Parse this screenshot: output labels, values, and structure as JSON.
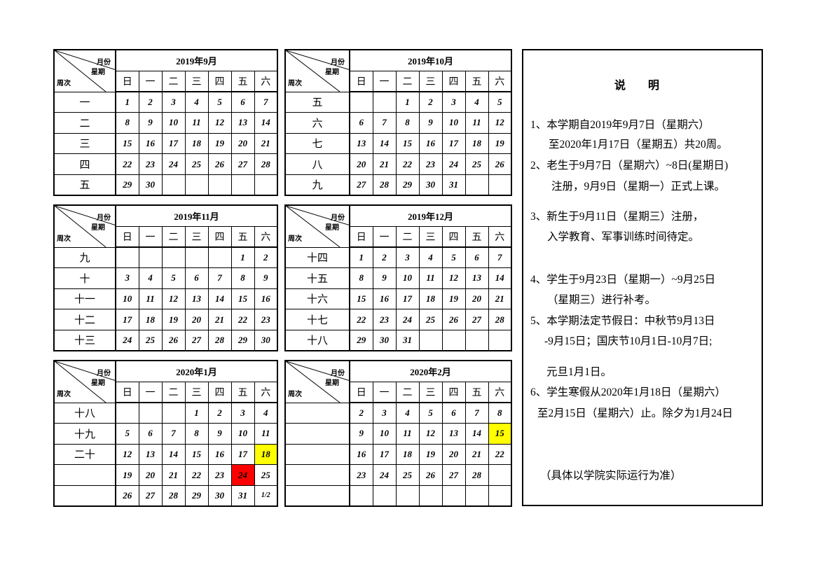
{
  "corner": {
    "month": "月份",
    "weekday": "星期",
    "week": "周次"
  },
  "weekdays": [
    "日",
    "一",
    "二",
    "三",
    "四",
    "五",
    "六"
  ],
  "colors": {
    "winter_start": "#ffff00",
    "new_year_eve": "#ff0000",
    "winter_end": "#ffff00"
  },
  "months": [
    {
      "title": "2019年9月",
      "weeks": [
        {
          "week": "一",
          "days": [
            "1",
            "2",
            "3",
            "4",
            "5",
            "6",
            "7"
          ]
        },
        {
          "week": "二",
          "days": [
            "8",
            "9",
            "10",
            "11",
            "12",
            "13",
            "14"
          ]
        },
        {
          "week": "三",
          "days": [
            "15",
            "16",
            "17",
            "18",
            "19",
            "20",
            "21"
          ]
        },
        {
          "week": "四",
          "days": [
            "22",
            "23",
            "24",
            "25",
            "26",
            "27",
            "28"
          ]
        },
        {
          "week": "五",
          "days": [
            "29",
            "30",
            "",
            "",
            "",
            "",
            ""
          ]
        }
      ]
    },
    {
      "title": "2019年10月",
      "weeks": [
        {
          "week": "五",
          "days": [
            "",
            "",
            "1",
            "2",
            "3",
            "4",
            "5"
          ]
        },
        {
          "week": "六",
          "days": [
            "6",
            "7",
            "8",
            "9",
            "10",
            "11",
            "12"
          ]
        },
        {
          "week": "七",
          "days": [
            "13",
            "14",
            "15",
            "16",
            "17",
            "18",
            "19"
          ]
        },
        {
          "week": "八",
          "days": [
            "20",
            "21",
            "22",
            "23",
            "24",
            "25",
            "26"
          ]
        },
        {
          "week": "九",
          "days": [
            "27",
            "28",
            "29",
            "30",
            "31",
            "",
            ""
          ]
        }
      ]
    },
    {
      "title": "2019年11月",
      "weeks": [
        {
          "week": "九",
          "days": [
            "",
            "",
            "",
            "",
            "",
            "1",
            "2"
          ]
        },
        {
          "week": "十",
          "days": [
            "3",
            "4",
            "5",
            "6",
            "7",
            "8",
            "9"
          ]
        },
        {
          "week": "十一",
          "days": [
            "10",
            "11",
            "12",
            "13",
            "14",
            "15",
            "16"
          ]
        },
        {
          "week": "十二",
          "days": [
            "17",
            "18",
            "19",
            "20",
            "21",
            "22",
            "23"
          ]
        },
        {
          "week": "十三",
          "days": [
            "24",
            "25",
            "26",
            "27",
            "28",
            "29",
            "30"
          ]
        }
      ]
    },
    {
      "title": "2019年12月",
      "weeks": [
        {
          "week": "十四",
          "days": [
            "1",
            "2",
            "3",
            "4",
            "5",
            "6",
            "7"
          ]
        },
        {
          "week": "十五",
          "days": [
            "8",
            "9",
            "10",
            "11",
            "12",
            "13",
            "14"
          ]
        },
        {
          "week": "十六",
          "days": [
            "15",
            "16",
            "17",
            "18",
            "19",
            "20",
            "21"
          ]
        },
        {
          "week": "十七",
          "days": [
            "22",
            "23",
            "24",
            "25",
            "26",
            "27",
            "28"
          ]
        },
        {
          "week": "十八",
          "days": [
            "29",
            "30",
            "31",
            "",
            "",
            "",
            ""
          ]
        }
      ]
    },
    {
      "title": "2020年1月",
      "weeks": [
        {
          "week": "十八",
          "days": [
            "",
            "",
            "",
            "1",
            "2",
            "3",
            "4"
          ]
        },
        {
          "week": "十九",
          "days": [
            "5",
            "6",
            "7",
            "8",
            "9",
            "10",
            "11"
          ]
        },
        {
          "week": "二十",
          "days": [
            "12",
            "13",
            "14",
            "15",
            "16",
            "17",
            "18"
          ]
        },
        {
          "week": "",
          "days": [
            "19",
            "20",
            "21",
            "22",
            "23",
            "24",
            "25"
          ]
        },
        {
          "week": "",
          "days": [
            "26",
            "27",
            "28",
            "29",
            "30",
            "31",
            "1/2"
          ]
        }
      ],
      "highlights": [
        {
          "row": 2,
          "col": 6,
          "color": "winter_start"
        },
        {
          "row": 3,
          "col": 5,
          "color": "new_year_eve"
        }
      ]
    },
    {
      "title": "2020年2月",
      "weeks": [
        {
          "week": "",
          "days": [
            "2",
            "3",
            "4",
            "5",
            "6",
            "7",
            "8"
          ]
        },
        {
          "week": "",
          "days": [
            "9",
            "10",
            "11",
            "12",
            "13",
            "14",
            "15"
          ]
        },
        {
          "week": "",
          "days": [
            "16",
            "17",
            "18",
            "19",
            "20",
            "21",
            "22"
          ]
        },
        {
          "week": "",
          "days": [
            "23",
            "24",
            "25",
            "26",
            "27",
            "28",
            ""
          ]
        },
        {
          "week": "",
          "days": [
            "",
            "",
            "",
            "",
            "",
            "",
            ""
          ]
        }
      ],
      "highlights": [
        {
          "row": 1,
          "col": 6,
          "color": "winter_end"
        }
      ]
    }
  ],
  "notes": {
    "heading": "说　　明",
    "lines": [
      "1、本学期自2019年9月7日（星期六）",
      "至2020年1月17日（星期五）共20周。",
      "2、老生于9月7日（星期六）~8日(星期日)",
      "注册，9月9日（星期一）正式上课。",
      "3、新生于9月11日（星期三）注册，",
      "入学教育、军事训练时间待定。",
      "4、学生于9月23日（星期一）~9月25日",
      "（星期三）进行补考。",
      "5、本学期法定节假日：中秋节9月13日",
      "-9月15日；国庆节10月1日-10月7日;",
      "元旦1月1日。",
      "6、学生寒假从2020年1月18日（星期六）",
      "至2月15日（星期六）止。除夕为1月24日",
      "（具体以学院实际运行为准）"
    ]
  }
}
